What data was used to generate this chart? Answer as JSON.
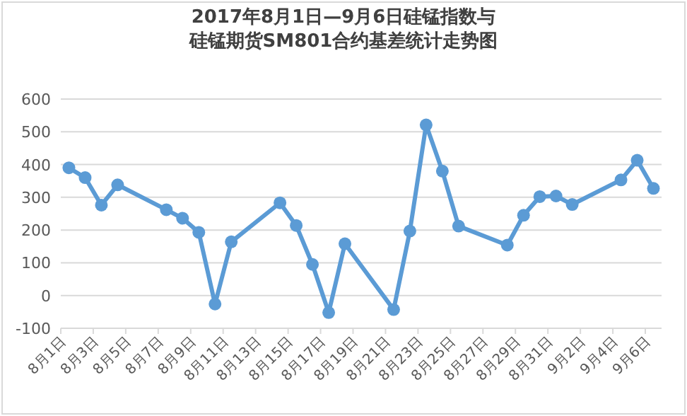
{
  "chart_data": {
    "type": "line",
    "title": "2017年8月1日—9月6日硅锰指数与硅锰期货SM801合约基差统计走势图",
    "x": [
      "2017-08-01T12:00",
      "2017-08-02T12:00",
      "2017-08-03T12:00",
      "2017-08-04T12:00",
      "2017-08-07T12:00",
      "2017-08-08T12:00",
      "2017-08-09T12:00",
      "2017-08-10T12:00",
      "2017-08-11T12:00",
      "2017-08-14T12:00",
      "2017-08-15T12:00",
      "2017-08-16T12:00",
      "2017-08-17T12:00",
      "2017-08-18T12:00",
      "2017-08-21T12:00",
      "2017-08-22T12:00",
      "2017-08-23T12:00",
      "2017-08-24T12:00",
      "2017-08-25T12:00",
      "2017-08-28T12:00",
      "2017-08-29T12:00",
      "2017-08-30T12:00",
      "2017-08-31T12:00",
      "2017-09-01T12:00",
      "2017-09-04T12:00",
      "2017-09-05T12:00",
      "2017-09-06T12:00"
    ],
    "series": [
      {
        "color": "#5b9bd5",
        "values": [
          390,
          360,
          276,
          338,
          262,
          236,
          193,
          -26,
          164,
          283,
          214,
          95,
          -52,
          158,
          -43,
          197,
          521,
          380,
          212,
          154,
          245,
          302,
          304,
          278,
          353,
          413,
          327
        ]
      }
    ],
    "xlim": [
      "2017-08-01",
      "2017-09-07"
    ],
    "xticks": [
      {
        "value": "2017-08-01",
        "label": "8月1日"
      },
      {
        "value": "2017-08-03",
        "label": "8月3日"
      },
      {
        "value": "2017-08-05",
        "label": "8月5日"
      },
      {
        "value": "2017-08-07",
        "label": "8月7日"
      },
      {
        "value": "2017-08-09",
        "label": "8月9日"
      },
      {
        "value": "2017-08-11",
        "label": "8月11日"
      },
      {
        "value": "2017-08-13",
        "label": "8月13日"
      },
      {
        "value": "2017-08-15",
        "label": "8月15日"
      },
      {
        "value": "2017-08-17",
        "label": "8月17日"
      },
      {
        "value": "2017-08-19",
        "label": "8月19日"
      },
      {
        "value": "2017-08-21",
        "label": "8月21日"
      },
      {
        "value": "2017-08-23",
        "label": "8月23日"
      },
      {
        "value": "2017-08-25",
        "label": "8月25日"
      },
      {
        "value": "2017-08-27",
        "label": "8月27日"
      },
      {
        "value": "2017-08-29",
        "label": "8月29日"
      },
      {
        "value": "2017-08-31",
        "label": "8月31日"
      },
      {
        "value": "2017-09-02",
        "label": "9月2日"
      },
      {
        "value": "2017-09-04",
        "label": "9月4日"
      },
      {
        "value": "2017-09-06",
        "label": "9月6日"
      }
    ],
    "ylim": [
      -100,
      600
    ],
    "yticks": [
      -100,
      0,
      100,
      200,
      300,
      400,
      500,
      600
    ],
    "grid": "y",
    "marker": "circle",
    "line_style": "solid"
  }
}
